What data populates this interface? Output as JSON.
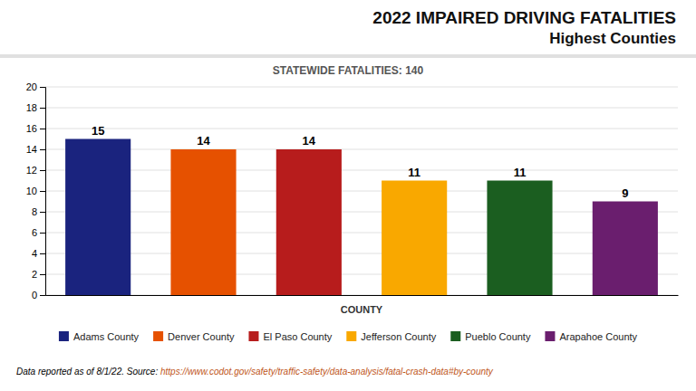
{
  "chart_data": {
    "type": "bar",
    "title": "2022 IMPAIRED DRIVING FATALITIES",
    "subtitle": "Highest Counties",
    "x_label": "COUNTY",
    "annotations": [
      "STATEWIDE FATALITIES: 140",
      "Data reported as of 8/1/22. Source: ",
      "https://www.codot.gov/safety/traffic-safety/data-analysis/fatal-crash-data#by-county"
    ],
    "categories": [
      "Adams County",
      "Denver County",
      "El Paso County",
      "Jefferson County",
      "Pueblo County",
      "Arapahoe County"
    ],
    "values": [
      15,
      14,
      14,
      11,
      11,
      9
    ],
    "colors": [
      "#1a237e",
      "#e65100",
      "#b71c1c",
      "#f9a800",
      "#1b5e20",
      "#6a1e6e"
    ],
    "ylim": [
      0,
      20
    ],
    "yticks": [
      0,
      2,
      4,
      6,
      8,
      10,
      12,
      14,
      16,
      18,
      20
    ],
    "grid": true,
    "data_labels": true,
    "tick_labels": "y",
    "legend": "bottom"
  }
}
